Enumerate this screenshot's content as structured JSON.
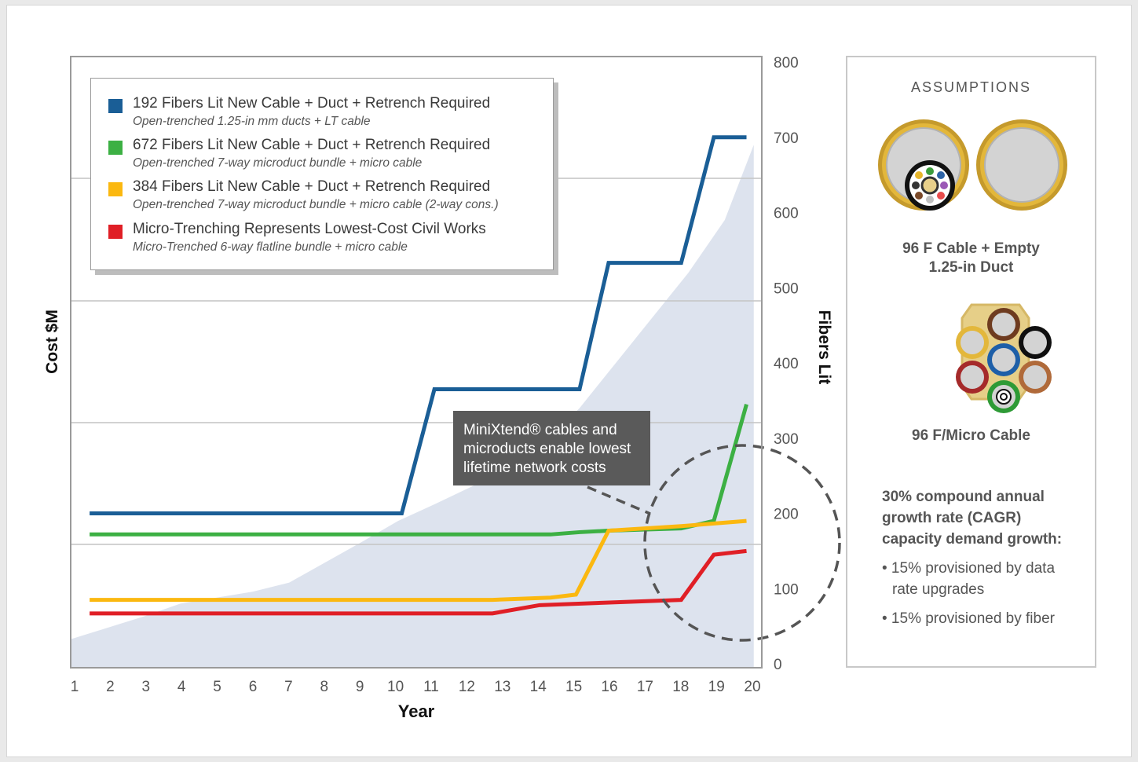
{
  "colors": {
    "blue": "#1a5e96",
    "green": "#3cb043",
    "yellow": "#fbb810",
    "red": "#e01f26",
    "area": "#dde3ee",
    "callout_bg": "#5a5a5a"
  },
  "legend": {
    "items": [
      {
        "color": "#1a5e96",
        "label": "192 Fibers Lit New Cable + Duct + Retrench Required",
        "sub": "Open-trenched 1.25-in mm ducts + LT cable"
      },
      {
        "color": "#3cb043",
        "label": "672 Fibers Lit New Cable + Duct + Retrench Required",
        "sub": "Open-trenched 7-way microduct bundle + micro cable"
      },
      {
        "color": "#fbb810",
        "label": "384 Fibers Lit New Cable + Duct + Retrench Required",
        "sub": "Open-trenched 7-way microduct bundle + micro cable (2-way cons.)"
      },
      {
        "color": "#e01f26",
        "label": "Micro-Trenching Represents Lowest-Cost Civil Works",
        "sub": "Micro-Trenched 6-way flatline bundle + micro cable"
      }
    ]
  },
  "callout": {
    "lines": [
      "MiniXtend® cables and",
      "microducts enable lowest",
      "lifetime network costs"
    ]
  },
  "panel": {
    "title": "ASSUMPTIONS",
    "cable_caption_1": "96 F Cable + Empty",
    "cable_caption_2": "1.25-in Duct",
    "micro_caption": "96 F/Micro Cable",
    "cagr_line_1": "30% compound annual",
    "cagr_line_2": "growth rate (CAGR)",
    "cagr_line_3": "capacity demand growth:",
    "bullet_1a": "• 15% provisioned by data",
    "bullet_1b": "rate upgrades",
    "bullet_2": "• 15% provisioned by fiber"
  },
  "chart_data": {
    "type": "line",
    "xlabel": "Year",
    "ylabel": "Cost $M",
    "y2label": "Fibers Lit",
    "x_ticks": [
      1,
      2,
      3,
      4,
      5,
      6,
      7,
      8,
      9,
      10,
      11,
      12,
      13,
      14,
      15,
      16,
      17,
      18,
      19,
      20
    ],
    "xlim": [
      1,
      20
    ],
    "y2_ticks": [
      0,
      100,
      200,
      300,
      400,
      500,
      600,
      700,
      800
    ],
    "y2lim": [
      0,
      800
    ],
    "gridlines": "horizontal",
    "legend_position": "top-left",
    "area": {
      "axis": "right",
      "x": [
        1,
        2,
        3,
        4,
        5,
        6,
        7,
        8,
        9,
        10,
        11,
        12,
        13,
        14,
        15,
        16,
        17,
        18,
        19,
        19.8
      ],
      "y": [
        33,
        48,
        63,
        80,
        88,
        96,
        108,
        135,
        162,
        190,
        212,
        235,
        258,
        290,
        340,
        400,
        460,
        520,
        590,
        690
      ]
    },
    "series": [
      {
        "name": "192 Fibers Lit New Cable + Duct + Retrench Required",
        "color": "#1a5e96",
        "x": [
          1.5,
          10.1,
          11.0,
          15.0,
          15.8,
          17.8,
          18.7,
          19.6
        ],
        "y": [
          200,
          200,
          365,
          365,
          533,
          533,
          700,
          700
        ]
      },
      {
        "name": "672 Fibers Lit New Cable + Duct + Retrench Required",
        "color": "#3cb043",
        "x": [
          1.5,
          14.2,
          15.0,
          15.8,
          17.8,
          18.7,
          19.6
        ],
        "y": [
          172,
          172,
          175,
          177,
          180,
          190,
          345
        ]
      },
      {
        "name": "384 Fibers Lit New Cable + Duct + Retrench Required",
        "color": "#fbb810",
        "x": [
          1.5,
          12.6,
          14.2,
          14.9,
          15.8,
          17.8,
          19.6
        ],
        "y": [
          85,
          85,
          88,
          92,
          177,
          183,
          190
        ]
      },
      {
        "name": "Micro-Trenching Represents Lowest-Cost Civil Works",
        "color": "#e01f26",
        "x": [
          1.5,
          12.6,
          13.9,
          17.8,
          18.7,
          19.6
        ],
        "y": [
          67,
          67,
          78,
          85,
          145,
          150
        ]
      }
    ]
  }
}
